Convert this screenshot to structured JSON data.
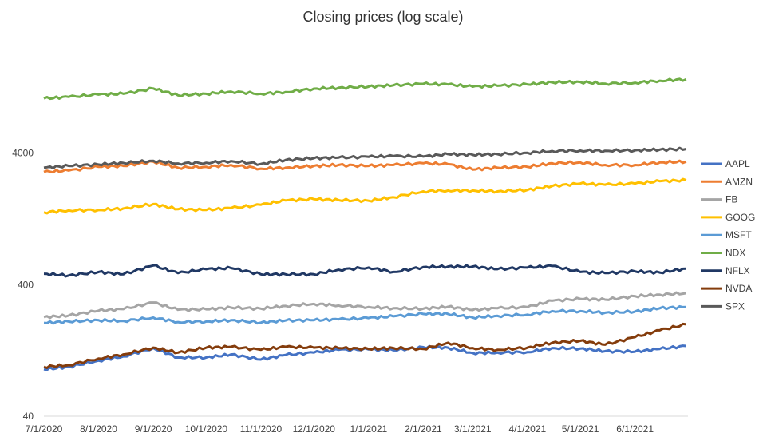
{
  "chart_data": {
    "type": "line",
    "title": "Closing prices (log scale)",
    "xlabel": "",
    "ylabel": "",
    "yscale": "log",
    "ylim": [
      40,
      40000
    ],
    "y_ticks": [
      40,
      400,
      4000
    ],
    "x_ticks": [
      "7/1/2020",
      "8/1/2020",
      "9/1/2020",
      "10/1/2020",
      "11/1/2020",
      "12/1/2020",
      "1/1/2021",
      "2/1/2021",
      "3/1/2021",
      "4/1/2021",
      "5/1/2021",
      "6/1/2021"
    ],
    "xlim": [
      "7/1/2020",
      "7/1/2021"
    ],
    "grid": false,
    "legend_position": "right",
    "x": [
      "7/1/2020",
      "7/15/2020",
      "8/1/2020",
      "8/15/2020",
      "9/1/2020",
      "9/15/2020",
      "10/1/2020",
      "10/15/2020",
      "11/1/2020",
      "11/15/2020",
      "12/1/2020",
      "12/15/2020",
      "1/1/2021",
      "1/15/2021",
      "2/1/2021",
      "2/15/2021",
      "3/1/2021",
      "3/15/2021",
      "4/1/2021",
      "4/15/2021",
      "5/1/2021",
      "5/15/2021",
      "6/1/2021",
      "6/15/2021",
      "6/30/2021"
    ],
    "series": [
      {
        "name": "AAPL",
        "color": "#4472C4",
        "values": [
          91,
          95,
          106,
          114,
          132,
          112,
          112,
          118,
          108,
          117,
          122,
          128,
          129,
          127,
          134,
          133,
          121,
          122,
          123,
          132,
          131,
          125,
          124,
          130,
          137
        ]
      },
      {
        "name": "AMZN",
        "color": "#ED7D31",
        "values": [
          2880,
          2950,
          3150,
          3200,
          3450,
          3100,
          3150,
          3250,
          3050,
          3100,
          3200,
          3250,
          3200,
          3250,
          3350,
          3300,
          3000,
          3100,
          3150,
          3350,
          3400,
          3250,
          3250,
          3400,
          3450
        ]
      },
      {
        "name": "FB",
        "color": "#A5A5A5",
        "values": [
          227,
          233,
          254,
          261,
          293,
          258,
          260,
          268,
          263,
          276,
          286,
          278,
          271,
          265,
          263,
          272,
          257,
          265,
          270,
          302,
          312,
          308,
          327,
          336,
          345
        ]
      },
      {
        "name": "GOOG",
        "color": "#FFC000",
        "values": [
          1420,
          1470,
          1480,
          1520,
          1640,
          1500,
          1480,
          1530,
          1620,
          1750,
          1790,
          1760,
          1740,
          1850,
          2050,
          2080,
          2080,
          2050,
          2100,
          2250,
          2350,
          2300,
          2350,
          2450,
          2490
        ]
      },
      {
        "name": "MSFT",
        "color": "#5B9BD5",
        "values": [
          205,
          210,
          215,
          212,
          225,
          208,
          210,
          215,
          206,
          214,
          215,
          218,
          223,
          230,
          240,
          240,
          225,
          232,
          237,
          252,
          252,
          245,
          250,
          265,
          271
        ]
      },
      {
        "name": "NDX",
        "color": "#70AD47",
        "values": [
          10400,
          10700,
          11150,
          11300,
          12400,
          11000,
          11300,
          11750,
          11300,
          11650,
          12350,
          12550,
          12800,
          13100,
          13450,
          13300,
          12800,
          13000,
          13300,
          13800,
          13900,
          13500,
          13700,
          14200,
          14550
        ]
      },
      {
        "name": "NFLX",
        "color": "#203864",
        "values": [
          485,
          470,
          500,
          480,
          560,
          490,
          525,
          535,
          480,
          480,
          480,
          520,
          540,
          500,
          545,
          550,
          550,
          525,
          540,
          555,
          500,
          490,
          505,
          495,
          530
        ]
      },
      {
        "name": "NVDA",
        "color": "#843C0C",
        "values": [
          95,
          98,
          110,
          118,
          133,
          122,
          133,
          135,
          128,
          135,
          133,
          132,
          130,
          132,
          130,
          145,
          132,
          128,
          133,
          145,
          150,
          140,
          160,
          180,
          200
        ]
      },
      {
        "name": "SPX",
        "color": "#595959",
        "values": [
          3100,
          3200,
          3280,
          3370,
          3500,
          3340,
          3380,
          3480,
          3310,
          3550,
          3660,
          3700,
          3750,
          3800,
          3770,
          3930,
          3880,
          3930,
          4020,
          4150,
          4180,
          4170,
          4200,
          4250,
          4300
        ]
      }
    ]
  }
}
